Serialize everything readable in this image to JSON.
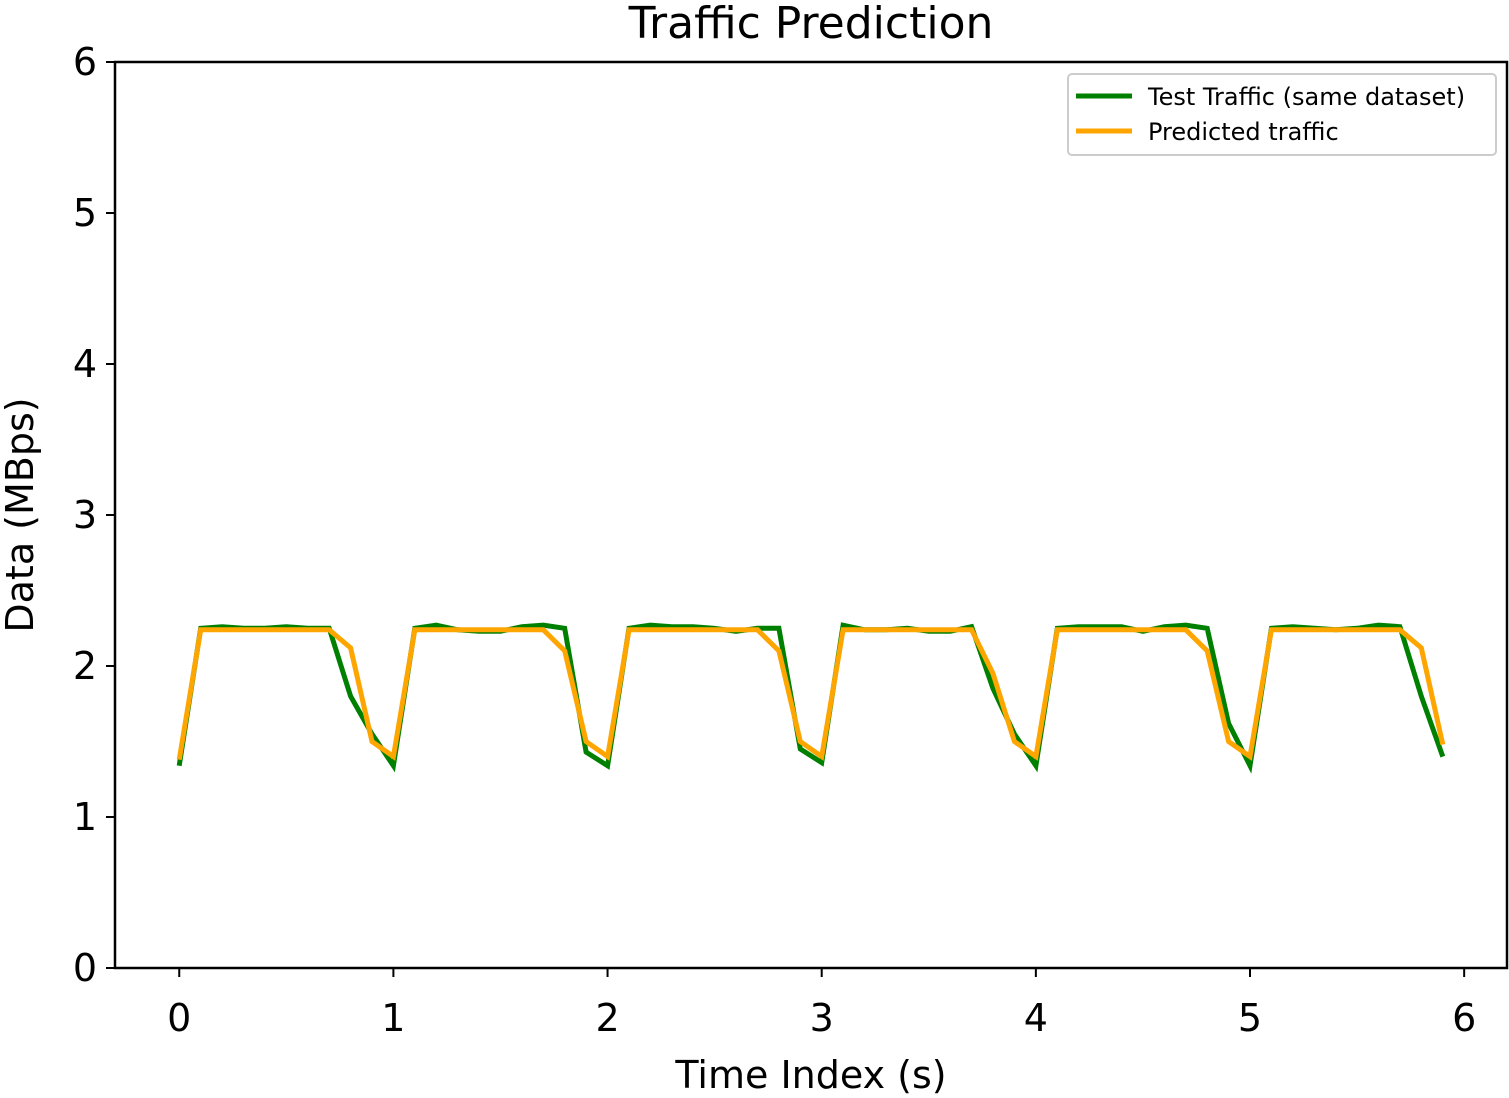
{
  "chart_data": {
    "type": "line",
    "title": "Traffic Prediction",
    "xlabel": "Time Index (s)",
    "ylabel": "Data (MBps)",
    "xlim": [
      -0.3,
      6.2
    ],
    "ylim": [
      0,
      6
    ],
    "xticks": [
      "0",
      "1",
      "2",
      "3",
      "4",
      "5",
      "6"
    ],
    "yticks": [
      "0",
      "1",
      "2",
      "3",
      "4",
      "5",
      "6"
    ],
    "grid": false,
    "legend_position": "top-right",
    "x": [
      0.0,
      0.1,
      0.2,
      0.3,
      0.4,
      0.5,
      0.6,
      0.7,
      0.8,
      0.9,
      1.0,
      1.1,
      1.2,
      1.3,
      1.4,
      1.5,
      1.6,
      1.7,
      1.8,
      1.9,
      2.0,
      2.1,
      2.2,
      2.3,
      2.4,
      2.5,
      2.6,
      2.7,
      2.8,
      2.9,
      3.0,
      3.1,
      3.2,
      3.3,
      3.4,
      3.5,
      3.6,
      3.7,
      3.8,
      3.9,
      4.0,
      4.1,
      4.2,
      4.3,
      4.4,
      4.5,
      4.6,
      4.7,
      4.8,
      4.9,
      5.0,
      5.1,
      5.2,
      5.3,
      5.4,
      5.5,
      5.6,
      5.7,
      5.8,
      5.9
    ],
    "series": [
      {
        "name": "Test Traffic (same dataset)",
        "color": "#008000",
        "values": [
          1.34,
          2.25,
          2.26,
          2.25,
          2.25,
          2.26,
          2.25,
          2.25,
          1.8,
          1.55,
          1.34,
          2.25,
          2.27,
          2.24,
          2.23,
          2.23,
          2.26,
          2.27,
          2.25,
          1.43,
          1.34,
          2.25,
          2.27,
          2.26,
          2.26,
          2.25,
          2.23,
          2.25,
          2.25,
          1.45,
          1.36,
          2.27,
          2.24,
          2.24,
          2.25,
          2.23,
          2.23,
          2.26,
          1.85,
          1.55,
          1.34,
          2.25,
          2.26,
          2.26,
          2.26,
          2.23,
          2.26,
          2.27,
          2.25,
          1.62,
          1.34,
          2.25,
          2.26,
          2.25,
          2.24,
          2.25,
          2.27,
          2.26,
          1.8,
          1.4
        ]
      },
      {
        "name": "Predicted traffic",
        "color": "#FFA500",
        "values": [
          1.38,
          2.24,
          2.24,
          2.24,
          2.24,
          2.24,
          2.24,
          2.24,
          2.12,
          1.5,
          1.4,
          2.24,
          2.24,
          2.24,
          2.24,
          2.24,
          2.24,
          2.24,
          2.1,
          1.5,
          1.4,
          2.24,
          2.24,
          2.24,
          2.24,
          2.24,
          2.24,
          2.24,
          2.1,
          1.5,
          1.4,
          2.24,
          2.24,
          2.24,
          2.24,
          2.24,
          2.24,
          2.24,
          1.95,
          1.5,
          1.4,
          2.24,
          2.24,
          2.24,
          2.24,
          2.24,
          2.24,
          2.24,
          2.1,
          1.5,
          1.4,
          2.24,
          2.24,
          2.24,
          2.24,
          2.24,
          2.24,
          2.24,
          2.12,
          1.48
        ]
      }
    ]
  }
}
